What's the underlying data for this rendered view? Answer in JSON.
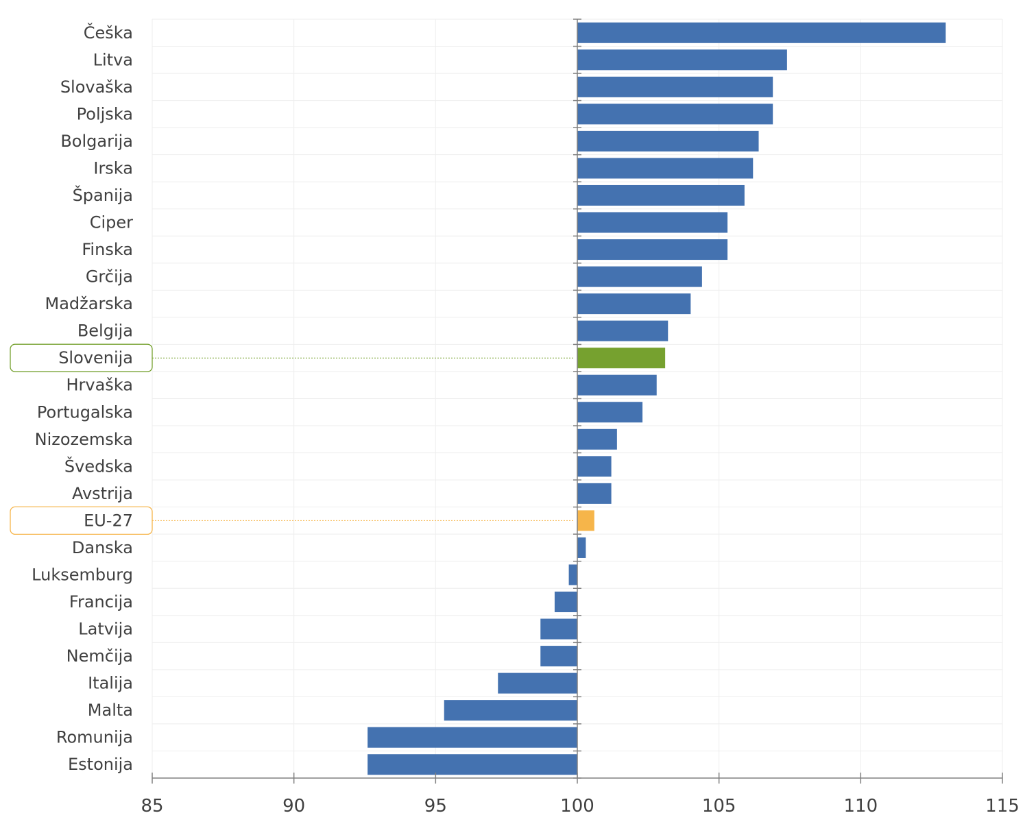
{
  "chart_data": {
    "type": "bar",
    "orientation": "horizontal",
    "baseline": 100,
    "xlim": [
      85,
      115
    ],
    "xticks": [
      85,
      90,
      95,
      100,
      105,
      110,
      115
    ],
    "grid": true,
    "categories": [
      "Češka",
      "Litva",
      "Slovaška",
      "Poljska",
      "Bolgarija",
      "Irska",
      "Španija",
      "Ciper",
      "Finska",
      "Grčija",
      "Madžarska",
      "Belgija",
      "Slovenija",
      "Hrvaška",
      "Portugalska",
      "Nizozemska",
      "Švedska",
      "Avstrija",
      "EU-27",
      "Danska",
      "Luksemburg",
      "Francija",
      "Latvija",
      "Nemčija",
      "Italija",
      "Malta",
      "Romunija",
      "Estonija"
    ],
    "values": [
      113.0,
      107.4,
      106.9,
      106.9,
      106.4,
      106.2,
      105.9,
      105.3,
      105.3,
      104.4,
      104.0,
      103.2,
      103.1,
      102.8,
      102.3,
      101.4,
      101.2,
      101.2,
      100.6,
      100.3,
      99.7,
      99.2,
      98.7,
      98.7,
      97.2,
      95.3,
      92.6,
      92.6
    ],
    "highlights": {
      "Slovenija": "#76a12f",
      "EU-27": "#f6b54a"
    },
    "colors": {
      "bar": "#4472b0",
      "axis": "#808080",
      "grid": "#eeeeee",
      "label": "#404040"
    }
  }
}
